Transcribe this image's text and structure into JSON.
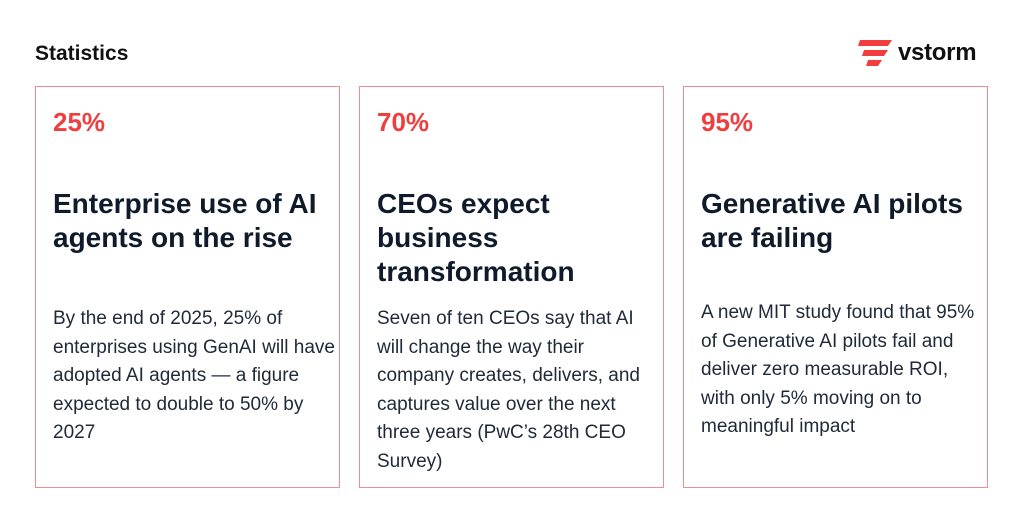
{
  "header": {
    "title": "Statistics"
  },
  "logo": {
    "text": "vstorm",
    "accent_color": "#f03e3e"
  },
  "cards": [
    {
      "stat": "25%",
      "heading": "Enterprise use of AI agents on the rise",
      "body": "By the end of 2025, 25% of enterprises using GenAI will have adopted AI agents — a figure expected to double to 50% by 2027"
    },
    {
      "stat": "70%",
      "heading": "CEOs expect business transformation",
      "body": "Seven of ten CEOs say that AI will change the way their company creates, delivers, and captures value over the next three years (PwC’s 28th CEO Survey)"
    },
    {
      "stat": "95%",
      "heading": "Generative AI pilots are failing",
      "body": "A new MIT study found that 95% of Generative AI pilots fail and deliver zero measurable ROI, with only 5% moving on to meaningful impact"
    }
  ],
  "colors": {
    "accent": "#f03e3e",
    "card_border": "#f28b8b",
    "heading": "#0f1a2b"
  }
}
